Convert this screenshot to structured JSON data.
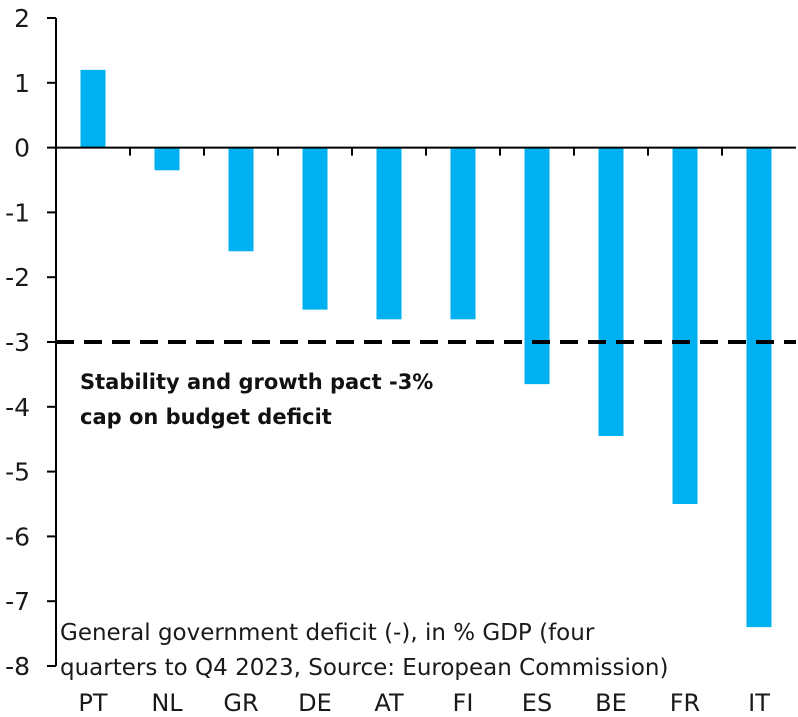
{
  "chart_data": {
    "type": "bar",
    "title": "",
    "xlabel": "",
    "ylabel": "",
    "categories": [
      "PT",
      "NL",
      "GR",
      "DE",
      "AT",
      "FI",
      "ES",
      "BE",
      "FR",
      "IT"
    ],
    "values": [
      1.2,
      -0.35,
      -1.6,
      -2.5,
      -2.65,
      -2.65,
      -3.65,
      -4.45,
      -5.5,
      -7.4
    ],
    "ylim": [
      -8,
      2
    ],
    "yticks": [
      "2",
      "1",
      "0",
      "-1",
      "-2",
      "-3",
      "-4",
      "-5",
      "-6",
      "-7",
      "-8"
    ],
    "ytick_values": [
      2,
      1,
      0,
      -1,
      -2,
      -3,
      -4,
      -5,
      -6,
      -7,
      -8
    ],
    "bar_color": "#00B0F0",
    "grid": false,
    "reference_line": {
      "value": -3,
      "style": "dashed",
      "color": "#000000"
    },
    "annotation": [
      "Stability and growth pact -3%",
      "cap on budget deficit"
    ],
    "note": [
      "General government deficit (-), in % GDP (four",
      "quarters to Q4 2023, Source: European Commission)"
    ]
  }
}
